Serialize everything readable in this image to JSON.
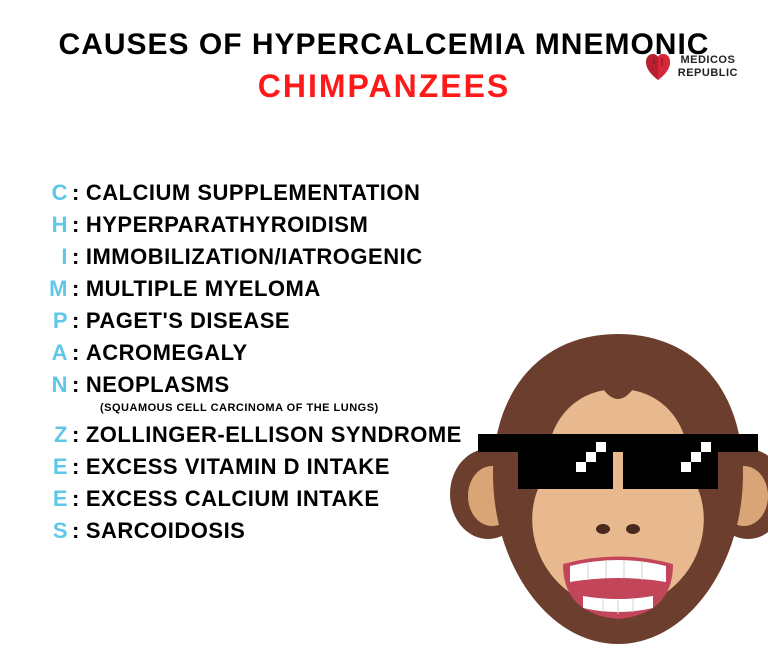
{
  "title": "CAUSES OF HYPERCALCEMIA MNEMONIC",
  "title_color": "#000000",
  "subtitle": "CHIMPANZEES",
  "subtitle_color": "#ff1a1a",
  "letter_color": "#5fc8e8",
  "text_color": "#000000",
  "logo": {
    "line1": "MEDICOS",
    "line2": "REPUBLIC"
  },
  "items": [
    {
      "letter": "C",
      "desc": "CALCIUM SUPPLEMENTATION"
    },
    {
      "letter": "H",
      "desc": "HYPERPARATHYROIDISM"
    },
    {
      "letter": "I",
      "desc": "IMMOBILIZATION/IATROGENIC"
    },
    {
      "letter": "M",
      "desc": "MULTIPLE MYELOMA"
    },
    {
      "letter": "P",
      "desc": "PAGET'S DISEASE"
    },
    {
      "letter": "A",
      "desc": "ACROMEGALY"
    },
    {
      "letter": "N",
      "desc": "NEOPLASMS",
      "note": "(SQUAMOUS CELL CARCINOMA OF THE LUNGS)"
    },
    {
      "letter": "Z",
      "desc": "ZOLLINGER-ELLISON SYNDROME"
    },
    {
      "letter": "E",
      "desc": "EXCESS VITAMIN D INTAKE"
    },
    {
      "letter": "E",
      "desc": "EXCESS CALCIUM INTAKE"
    },
    {
      "letter": "S",
      "desc": "SARCOIDOSIS"
    }
  ],
  "monkey_colors": {
    "head": "#6b3e2e",
    "face": "#e8b98f",
    "ear_inner": "#d9a577",
    "mouth_bg": "#c2455a",
    "teeth": "#ffffff",
    "nostril": "#4a2a1f",
    "glasses": "#000000",
    "glasses_pixel": "#ffffff"
  }
}
